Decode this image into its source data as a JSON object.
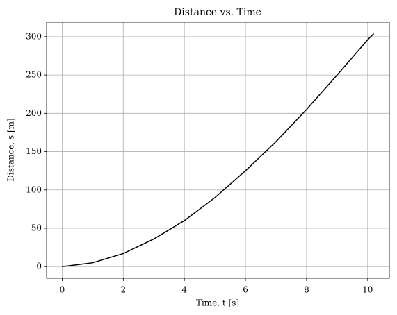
{
  "chart_data": {
    "type": "line",
    "title": "Distance vs. Time",
    "x_label": "Time, t [s]",
    "y_label": "Distance, s [m]",
    "x": [
      0,
      1,
      2,
      3,
      4,
      5,
      6,
      7,
      8,
      9,
      10,
      10.2
    ],
    "series": [
      {
        "name": "s",
        "color": "#000000",
        "values": [
          0,
          5,
          17,
          36,
          60,
          90,
          125,
          163,
          205,
          250,
          296,
          304
        ]
      }
    ],
    "xlim": [
      -0.51,
      10.71
    ],
    "ylim": [
      -15.2,
      318.9
    ],
    "xticks": [
      0,
      2,
      4,
      6,
      8,
      10
    ],
    "yticks": [
      0,
      50,
      100,
      150,
      200,
      250,
      300
    ],
    "grid": true
  }
}
